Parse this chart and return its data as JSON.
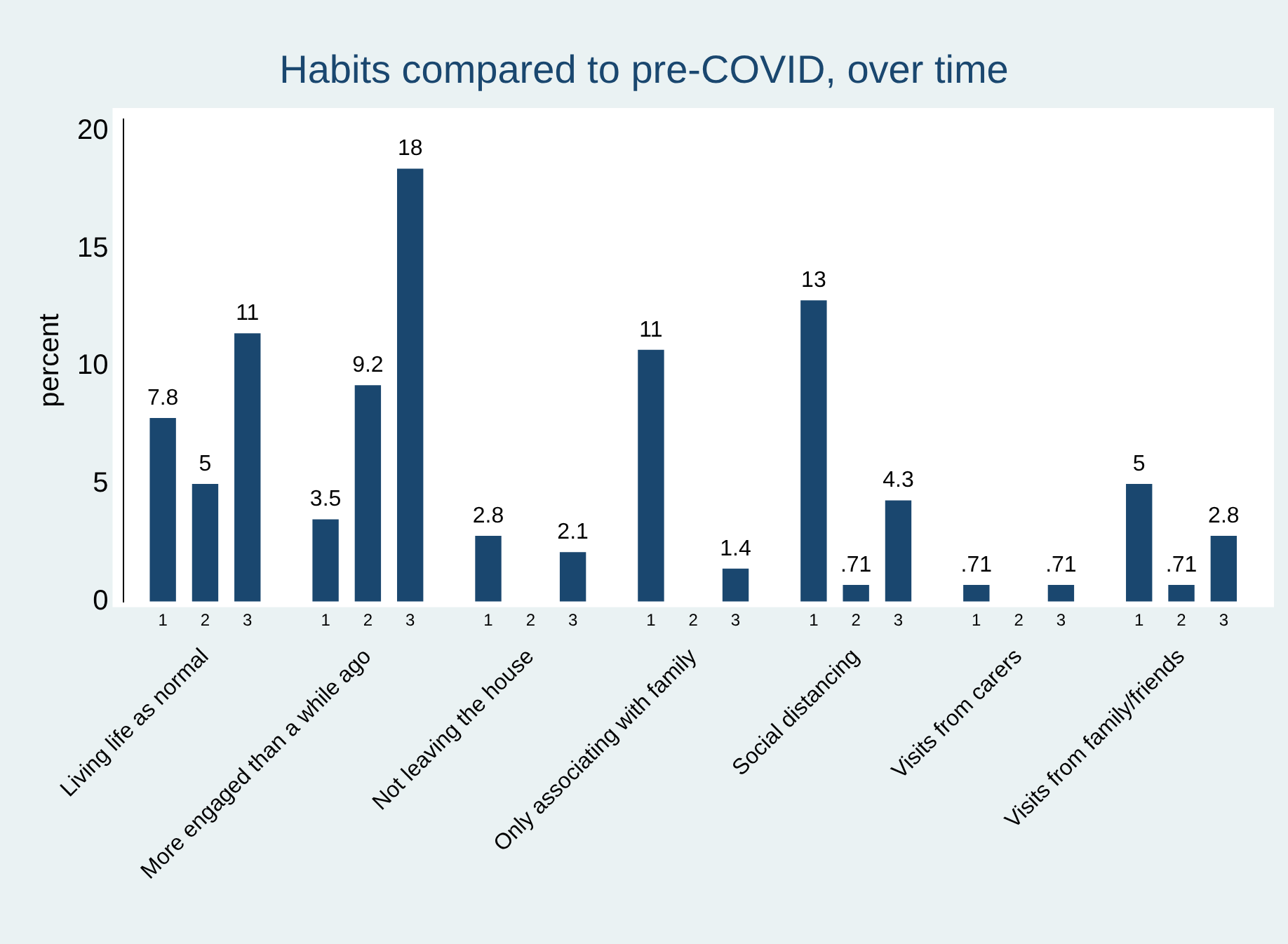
{
  "chart_data": {
    "type": "bar",
    "title": "Habits compared to pre-COVID, over time",
    "ylabel": "percent",
    "categories": [
      "Living life as normal",
      "More engaged than a while ago",
      "Not leaving the house",
      "Only associating with family",
      "Social distancing",
      "Visits from carers",
      "Visits from family/friends"
    ],
    "series": [
      {
        "name": "1",
        "color": "#1a476f",
        "values": [
          7.8,
          3.5,
          2.8,
          10.7,
          12.8,
          0.71,
          5
        ],
        "value_labels": [
          "7.8",
          "3.5",
          "2.8",
          "11",
          "13",
          ".71",
          "5"
        ]
      },
      {
        "name": "2",
        "color": "#1a476f",
        "values": [
          5,
          9.2,
          null,
          null,
          0.71,
          null,
          0.71
        ],
        "value_labels": [
          "5",
          "9.2",
          null,
          null,
          ".71",
          null,
          ".71"
        ]
      },
      {
        "name": "3",
        "color": "#1a476f",
        "values": [
          11.4,
          18.4,
          2.1,
          1.4,
          4.3,
          0.71,
          2.8
        ],
        "value_labels": [
          "11",
          "18",
          "2.1",
          "1.4",
          "4.3",
          ".71",
          "2.8"
        ]
      }
    ],
    "ylim": [
      0,
      20.5
    ],
    "yticks": [
      0,
      5,
      10,
      15,
      20
    ],
    "grid": false,
    "legend": false
  }
}
